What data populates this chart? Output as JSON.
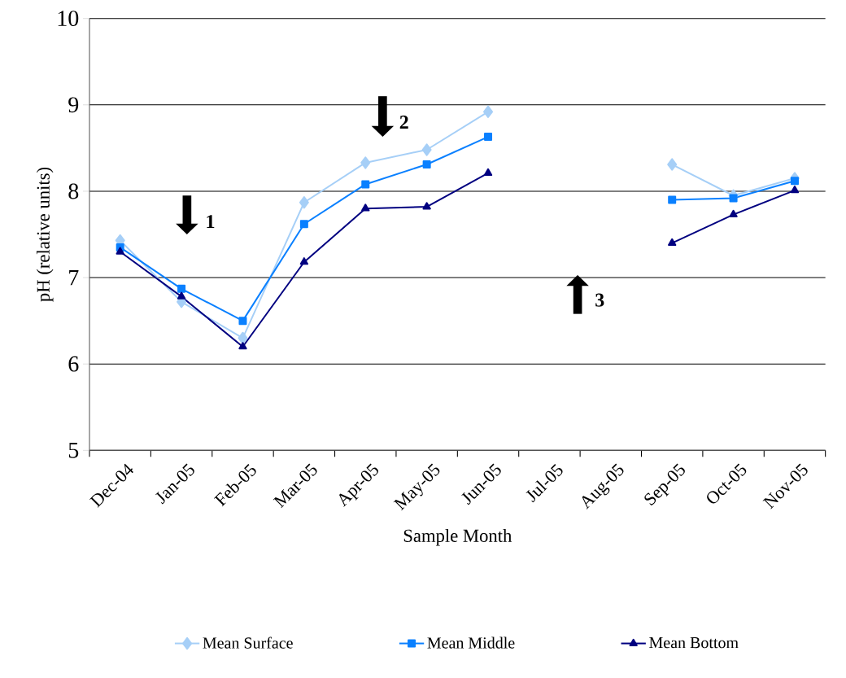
{
  "chart_data": {
    "type": "line",
    "xlabel": "Sample Month",
    "ylabel": "pH (relative units)",
    "categories": [
      "Dec-04",
      "Jan-05",
      "Feb-05",
      "Mar-05",
      "Apr-05",
      "May-05",
      "Jun-05",
      "Jul-05",
      "Aug-05",
      "Sep-05",
      "Oct-05",
      "Nov-05"
    ],
    "series": [
      {
        "name": "Mean Surface",
        "color": "#a6cff7",
        "marker": "diamond",
        "values": [
          7.43,
          6.72,
          6.3,
          7.87,
          8.33,
          8.48,
          8.92,
          null,
          null,
          8.31,
          7.95,
          8.15
        ]
      },
      {
        "name": "Mean Middle",
        "color": "#0a80ff",
        "marker": "square",
        "values": [
          7.35,
          6.87,
          6.5,
          7.62,
          8.08,
          8.31,
          8.63,
          null,
          null,
          7.9,
          7.92,
          8.12
        ]
      },
      {
        "name": "Mean Bottom",
        "color": "#000080",
        "marker": "triangle",
        "values": [
          7.3,
          6.78,
          6.2,
          7.18,
          7.8,
          7.82,
          8.21,
          null,
          null,
          7.4,
          7.73,
          8.01
        ]
      }
    ],
    "ylim": [
      5,
      10
    ],
    "yticks": [
      5,
      6,
      7,
      8,
      9,
      10
    ],
    "grid": "y",
    "legend": "bottom",
    "annotations": [
      "1",
      "2",
      "3"
    ]
  }
}
